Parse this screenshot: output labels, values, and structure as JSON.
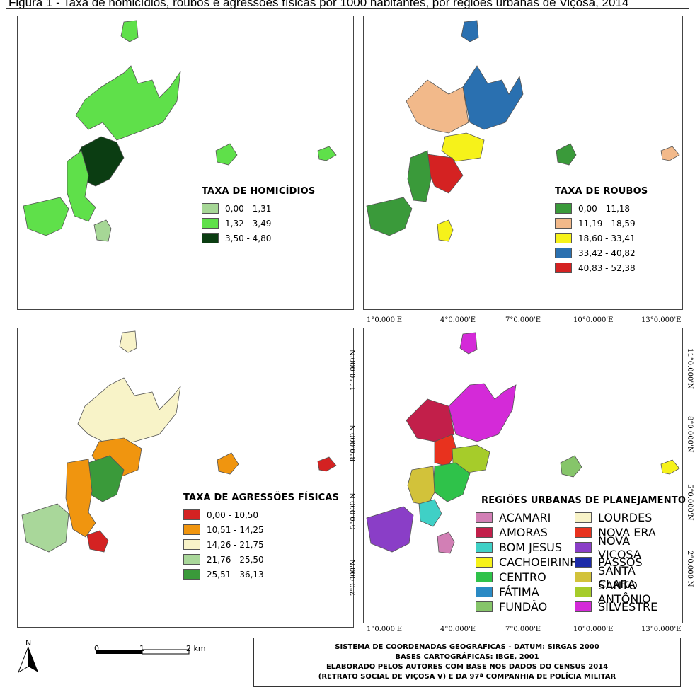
{
  "caption": "Figura 1 - Taxa de homicídios, roubos e agressões físicas por 1000 habitantes, por regiões urbanas de Viçosa, 2014",
  "panels": {
    "homicidios": {
      "title": "TAXA DE HOMICÍDIOS",
      "classes": [
        {
          "label": "0,00 - 1,31",
          "color": "#a6d796"
        },
        {
          "label": "1,32 - 3,49",
          "color": "#5fe04a"
        },
        {
          "label": "3,50 - 4,80",
          "color": "#0b3d12"
        }
      ]
    },
    "roubos": {
      "title": "TAXA DE ROUBOS",
      "classes": [
        {
          "label": "0,00 - 11,18",
          "color": "#3a9a3a"
        },
        {
          "label": "11,19 - 18,59",
          "color": "#f2b98a"
        },
        {
          "label": "18,60 - 33,41",
          "color": "#f6f21a"
        },
        {
          "label": "33,42 - 40,82",
          "color": "#2a70b0"
        },
        {
          "label": "40,83 - 52,38",
          "color": "#d42222"
        }
      ]
    },
    "agressoes": {
      "title": "TAXA DE AGRESSÕES FÍSICAS",
      "classes": [
        {
          "label": "0,00 - 10,50",
          "color": "#d42222"
        },
        {
          "label": "10,51 - 14,25",
          "color": "#f0950f"
        },
        {
          "label": "14,26 - 21,75",
          "color": "#f8f3c8"
        },
        {
          "label": "21,76 - 25,50",
          "color": "#a9d79a"
        },
        {
          "label": "25,51 - 36,13",
          "color": "#3a9a3a"
        }
      ]
    },
    "regioes": {
      "title": "REGIÕES URBANAS DE PLANEJAMENTO",
      "classes": [
        {
          "label": "ACAMARI",
          "color": "#d27fb5"
        },
        {
          "label": "LOURDES",
          "color": "#f8f3c8"
        },
        {
          "label": "AMORAS",
          "color": "#c21f4a"
        },
        {
          "label": "NOVA ERA",
          "color": "#e8321e"
        },
        {
          "label": "BOM JESUS",
          "color": "#3fd0c6"
        },
        {
          "label": "NOVA VIÇOSA",
          "color": "#8a3ec7"
        },
        {
          "label": "CACHOEIRINHA",
          "color": "#f6f21a"
        },
        {
          "label": "PASSOS",
          "color": "#1c2aa8"
        },
        {
          "label": "CENTRO",
          "color": "#2fc24a"
        },
        {
          "label": "SANTA CLARA",
          "color": "#d2c23a"
        },
        {
          "label": "FÁTIMA",
          "color": "#2a8ac4"
        },
        {
          "label": "SANTO ANTÔNIO",
          "color": "#a6cc2a"
        },
        {
          "label": "FUNDÃO",
          "color": "#86c56a"
        },
        {
          "label": "SILVESTRE",
          "color": "#d42ad8"
        }
      ]
    }
  },
  "coordinates": {
    "x_ticks": [
      "1°0.000'E",
      "4°0.000'E",
      "7°0.000'E",
      "10°0.000'E",
      "13°0.000'E"
    ],
    "y_ticks": [
      "11°0.000'N",
      "8°0.000'N",
      "5°0.000'N",
      "2°0.000'N"
    ]
  },
  "scale_bar": {
    "labels": [
      "0",
      "1",
      "2 km"
    ]
  },
  "north_arrow": {
    "label": "N"
  },
  "info_box": {
    "lines": [
      "SISTEMA DE COORDENADAS GEOGRÁFICAS - DATUM: SIRGAS 2000",
      "BASES CARTOGRÁFICAS: IBGE, 2001",
      "ELABORADO PELOS AUTORES COM BASE NOS DADOS DO CENSUS 2014",
      "(RETRATO SOCIAL DE VIÇOSA V) E DA 97ª COMPANHIA DE POLÍCIA MILITAR"
    ]
  },
  "map_colors": {
    "homicidios_main": "#5fe04a",
    "homicidios_dark": "#0b3d12",
    "homicidios_light": "#a6d796"
  }
}
